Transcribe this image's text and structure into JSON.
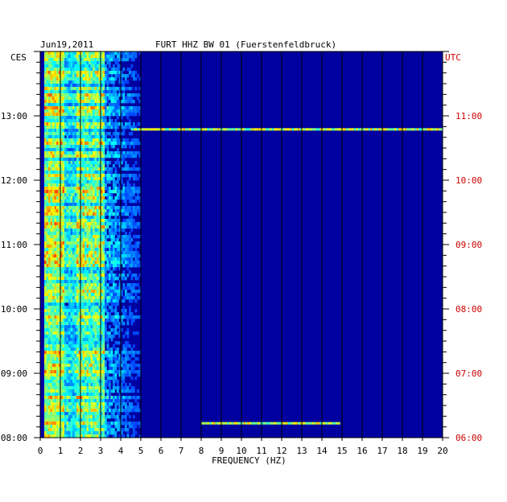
{
  "header": {
    "date": "Jun19,2011",
    "station": "FURT HHZ BW 01 (Fuerstenfeldbruck)",
    "left_tz": "CES",
    "right_tz": "UTC"
  },
  "colors": {
    "background_bins": "#0000a0",
    "grid": "#000000",
    "utc_labels": "#cc0000",
    "event_line": "#00ffff"
  },
  "chart_data": {
    "type": "heatmap",
    "title": "FURT HHZ BW 01 (Fuerstenfeldbruck)",
    "subtitle": "Jun19,2011",
    "xlabel": "FREQUENCY (HZ)",
    "xlim": [
      0,
      20
    ],
    "x_ticks": [
      "0",
      "1",
      "2",
      "3",
      "4",
      "5",
      "6",
      "7",
      "8",
      "9",
      "10",
      "11",
      "12",
      "13",
      "14",
      "15",
      "16",
      "17",
      "18",
      "19",
      "20"
    ],
    "y_left_label": "CES",
    "y_right_label": "UTC",
    "y_left_ticks": [
      "13:00",
      "12:00",
      "11:00",
      "10:00",
      "09:00",
      "08:00"
    ],
    "y_right_ticks": [
      "11:00",
      "10:00",
      "09:00",
      "08:00",
      "07:00",
      "06:00"
    ],
    "time_range_ces": [
      "08:00",
      "14:00"
    ],
    "dominant_bands_hz": [
      [
        0.3,
        1.2
      ],
      [
        1.8,
        3.2
      ]
    ],
    "notable_lines": [
      {
        "time_ces": "12:47",
        "freq_range_hz": [
          4.5,
          20
        ]
      },
      {
        "time_ces": "08:13",
        "freq_range_hz": [
          8,
          14.8
        ]
      }
    ],
    "grid": true
  }
}
